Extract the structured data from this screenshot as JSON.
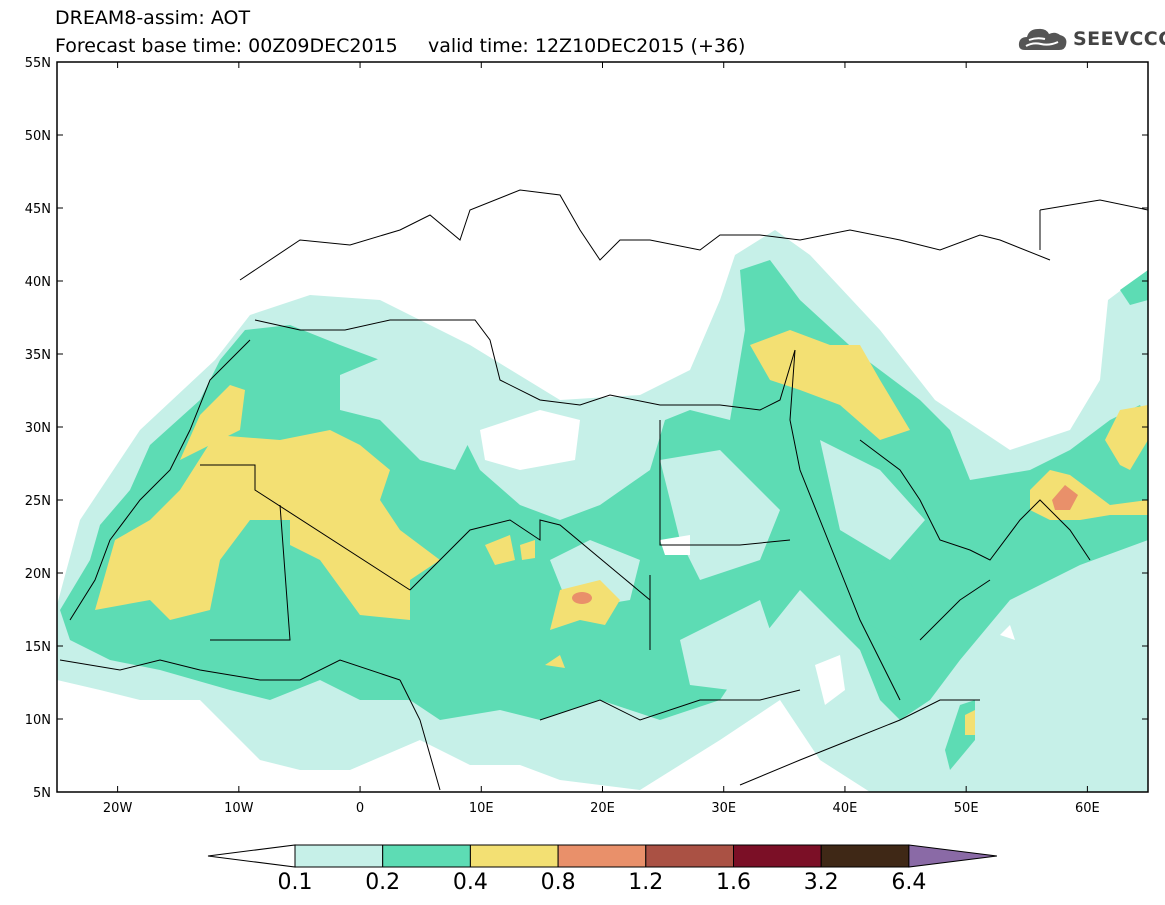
{
  "header": {
    "line1": "DREAM8-assim: AOT",
    "line2": "Forecast base time: 00Z09DEC2015     valid time: 12Z10DEC2015 (+36)"
  },
  "logo": {
    "text": "SEEVCCC",
    "icon": "cloud-icon"
  },
  "map": {
    "lon_range": [
      -25,
      65
    ],
    "lat_range": [
      5,
      55
    ],
    "lon_ticks": [
      {
        "value": -20,
        "label": "20W"
      },
      {
        "value": -10,
        "label": "10W"
      },
      {
        "value": 0,
        "label": "0"
      },
      {
        "value": 10,
        "label": "10E"
      },
      {
        "value": 20,
        "label": "20E"
      },
      {
        "value": 30,
        "label": "30E"
      },
      {
        "value": 40,
        "label": "40E"
      },
      {
        "value": 50,
        "label": "50E"
      },
      {
        "value": 60,
        "label": "60E"
      }
    ],
    "lat_ticks": [
      {
        "value": 5,
        "label": "5N"
      },
      {
        "value": 10,
        "label": "10N"
      },
      {
        "value": 15,
        "label": "15N"
      },
      {
        "value": 20,
        "label": "20N"
      },
      {
        "value": 25,
        "label": "25N"
      },
      {
        "value": 30,
        "label": "30N"
      },
      {
        "value": 35,
        "label": "35N"
      },
      {
        "value": 40,
        "label": "40N"
      },
      {
        "value": 45,
        "label": "45N"
      },
      {
        "value": 50,
        "label": "50N"
      },
      {
        "value": 55,
        "label": "55N"
      }
    ]
  },
  "colorbar": {
    "levels": [
      "0.1",
      "0.2",
      "0.4",
      "0.8",
      "1.2",
      "1.6",
      "3.2",
      "6.4"
    ],
    "colors": [
      "#ffffff",
      "#c6f0e8",
      "#5ddcb4",
      "#f3e073",
      "#e9906a",
      "#aa5144",
      "#7b0f26",
      "#3f2816",
      "#8a6aa6"
    ]
  }
}
